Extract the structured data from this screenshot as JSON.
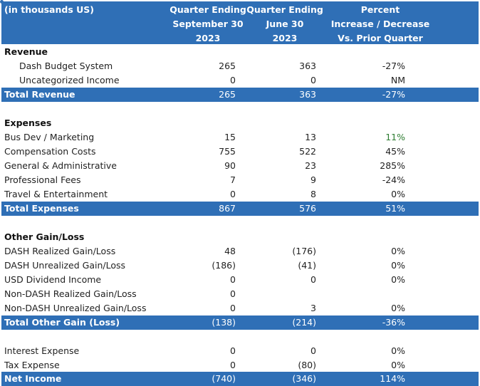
{
  "header": {
    "label": "(in thousands US)",
    "col1": [
      "Quarter Ending",
      "September 30",
      "2023"
    ],
    "col2": [
      "Quarter Ending",
      "June 30",
      "2023"
    ],
    "col3": [
      "Percent",
      "Increase / Decrease",
      "Vs. Prior Quarter"
    ]
  },
  "revenue": {
    "title": "Revenue",
    "rows": [
      {
        "name": "Dash Budget System",
        "v1": "265",
        "v2": "363",
        "v3": "-27%"
      },
      {
        "name": "Uncategorized Income",
        "v1": "0",
        "v2": "0",
        "v3": "NM"
      }
    ],
    "total": {
      "name": "Total Revenue",
      "v1": "265",
      "v2": "363",
      "v3": "-27%"
    }
  },
  "expenses": {
    "title": "Expenses",
    "rows": [
      {
        "name": "Bus Dev / Marketing",
        "v1": "15",
        "v2": "13",
        "v3": "11%"
      },
      {
        "name": "Compensation Costs",
        "v1": "755",
        "v2": "522",
        "v3": "45%"
      },
      {
        "name": "General & Administrative",
        "v1": "90",
        "v2": "23",
        "v3": "285%"
      },
      {
        "name": "Professional Fees",
        "v1": "7",
        "v2": "9",
        "v3": "-24%"
      },
      {
        "name": "Travel & Entertainment",
        "v1": "0",
        "v2": "8",
        "v3": "0%"
      }
    ],
    "total": {
      "name": "Total Expenses",
      "v1": "867",
      "v2": "576",
      "v3": "51%"
    }
  },
  "other": {
    "title": "Other Gain/Loss",
    "rows": [
      {
        "name": "DASH Realized Gain/Loss",
        "v1": "48",
        "v2": "(176)",
        "v3": "0%"
      },
      {
        "name": "DASH Unrealized Gain/Loss",
        "v1": "(186)",
        "v2": "(41)",
        "v3": "0%"
      },
      {
        "name": "USD Dividend Income",
        "v1": "0",
        "v2": "0",
        "v3": "0%"
      },
      {
        "name": "Non-DASH Realized Gain/Loss",
        "v1": "0",
        "v2": "",
        "v3": ""
      },
      {
        "name": "Non-DASH Unrealized Gain/Loss",
        "v1": "0",
        "v2": "3",
        "v3": "0%"
      }
    ],
    "total": {
      "name": "Total Other Gain (Loss)",
      "v1": "(138)",
      "v2": "(214)",
      "v3": "-36%"
    }
  },
  "misc": {
    "rows": [
      {
        "name": "Interest Expense",
        "v1": "0",
        "v2": "0",
        "v3": "0%"
      },
      {
        "name": "Tax Expense",
        "v1": "0",
        "v2": "(80)",
        "v3": "0%"
      }
    ],
    "total": {
      "name": "Net Income",
      "v1": "(740)",
      "v2": "(346)",
      "v3": "114%"
    }
  }
}
